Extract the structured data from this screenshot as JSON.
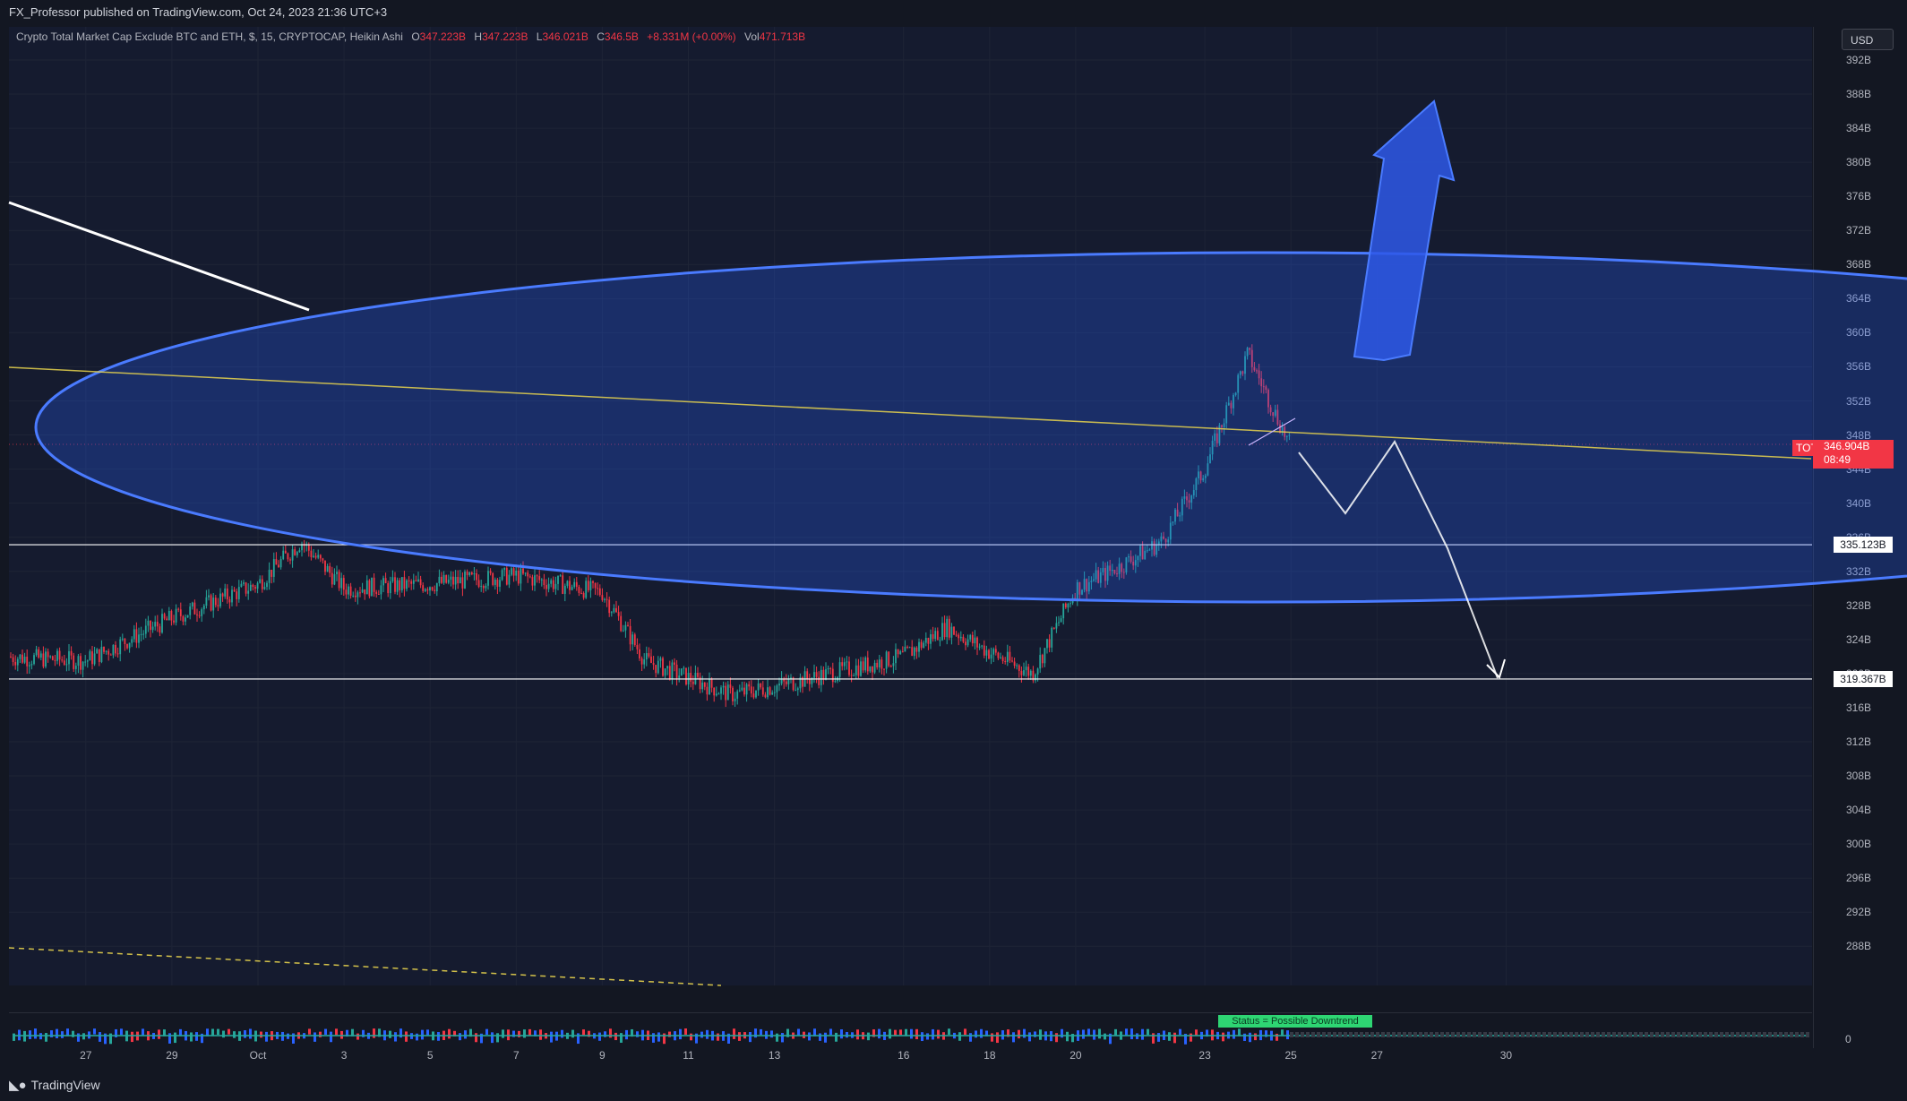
{
  "header": {
    "publisher_line": "FX_Professor published on TradingView.com, Oct 24, 2023 21:36 UTC+3"
  },
  "legend": {
    "title": "Crypto Total Market Cap Exclude BTC and ETH, $, 15, CRYPTOCAP, Heikin Ashi",
    "open_label": "O",
    "open_value": "347.223B",
    "high_label": "H",
    "high_value": "347.223B",
    "low_label": "L",
    "low_value": "346.021B",
    "close_label": "C",
    "close_value": "346.5B",
    "change_value": "+8.331M (+0.00%)",
    "vol_label": "Vol",
    "vol_value": "471.713B"
  },
  "price_axis": {
    "currency_button": "USD",
    "ticks": [
      "392B",
      "388B",
      "384B",
      "380B",
      "376B",
      "372B",
      "368B",
      "364B",
      "360B",
      "356B",
      "352B",
      "348B",
      "344B",
      "340B",
      "336B",
      "332B",
      "328B",
      "324B",
      "320B",
      "316B",
      "312B",
      "308B",
      "304B",
      "300B",
      "296B",
      "292B",
      "288B"
    ],
    "symbol_tag": "TOTAL3",
    "last_price": "346.904B",
    "countdown": "08:49",
    "level_upper": "335.123B",
    "level_lower": "319.367B"
  },
  "indicator": {
    "status_text": "Status = Possible Downtrend",
    "zero_label": "0"
  },
  "time_axis": {
    "ticks": [
      "27",
      "29",
      "Oct",
      "3",
      "5",
      "7",
      "9",
      "11",
      "13",
      "16",
      "18",
      "20",
      "23",
      "25",
      "27",
      "30"
    ]
  },
  "footer": {
    "brand": "TradingView"
  },
  "colors": {
    "background": "#131722",
    "ellipse_fill": "#2962ff",
    "ellipse_stroke": "#4a7bff",
    "up_candle": "#26a69a",
    "down_candle": "#f23645",
    "trendline_yellow": "#e8d44d",
    "arrow_blue": "#2e58e8"
  },
  "chart_data": {
    "type": "candlestick",
    "symbol": "TOTAL3",
    "interval": "15",
    "style": "Heikin Ashi",
    "ylim": [
      285,
      394
    ],
    "last_price": 346.904,
    "levels": [
      335.123,
      319.367
    ],
    "path_segments": [
      {
        "date": "Sep 25",
        "value": 322.0
      },
      {
        "date": "Sep 27",
        "value": 321.5
      },
      {
        "date": "Sep 29",
        "value": 326.5
      },
      {
        "date": "Oct 1",
        "value": 330.5
      },
      {
        "date": "Oct 2",
        "value": 335.5
      },
      {
        "date": "Oct 3",
        "value": 330.0
      },
      {
        "date": "Oct 5",
        "value": 330.5
      },
      {
        "date": "Oct 7",
        "value": 331.5
      },
      {
        "date": "Oct 9",
        "value": 329.5
      },
      {
        "date": "Oct 10",
        "value": 321.5
      },
      {
        "date": "Oct 12",
        "value": 317.5
      },
      {
        "date": "Oct 13",
        "value": 318.5
      },
      {
        "date": "Oct 16",
        "value": 322.0
      },
      {
        "date": "Oct 17",
        "value": 325.5
      },
      {
        "date": "Oct 18",
        "value": 322.5
      },
      {
        "date": "Oct 19",
        "value": 320.0
      },
      {
        "date": "Oct 20",
        "value": 330.0
      },
      {
        "date": "Oct 21",
        "value": 332.5
      },
      {
        "date": "Oct 22",
        "value": 335.5
      },
      {
        "date": "Oct 23",
        "value": 344.0
      },
      {
        "date": "Oct 24",
        "value": 357.5
      },
      {
        "date": "Oct 25",
        "value": 346.5
      }
    ],
    "volatility": 1.0
  }
}
